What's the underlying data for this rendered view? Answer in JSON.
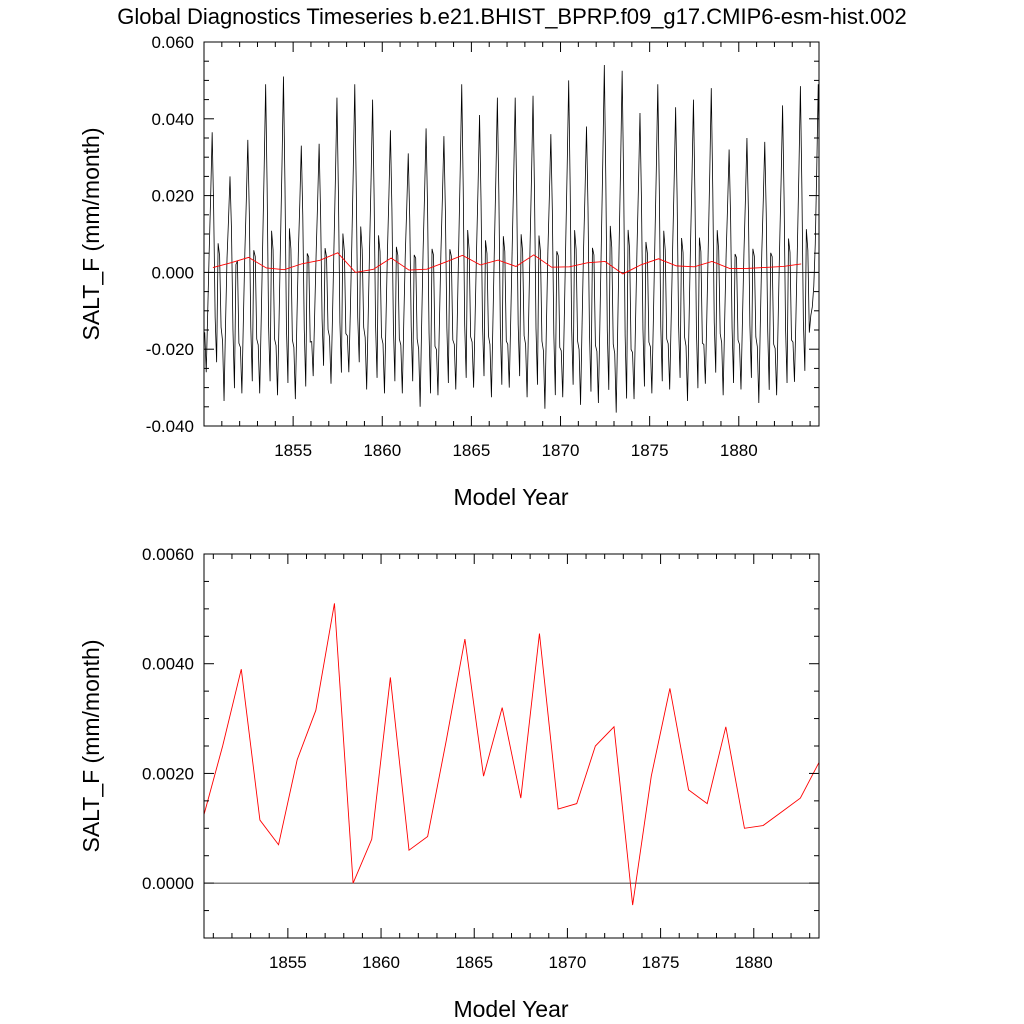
{
  "figure": {
    "title": "Global Diagnostics Timeseries b.e21.BHIST_BPRP.f09_g17.CMIP6-esm-hist.002"
  },
  "chart_data": [
    {
      "type": "line",
      "title": "Global Diagnostics Timeseries b.e21.BHIST_BPRP.f09_g17.CMIP6-esm-hist.002",
      "xlabel": "Model Year",
      "ylabel": "SALT_F (mm/month)",
      "xlim": [
        1850.0,
        1884.5
      ],
      "ylim": [
        -0.04,
        0.06
      ],
      "x_ticks": [
        "1855",
        "1860",
        "1865",
        "1870",
        "1875",
        "1880"
      ],
      "x_tick_values": [
        1855,
        1860,
        1865,
        1870,
        1875,
        1880
      ],
      "y_ticks": [
        "-0.040",
        "-0.020",
        "0.000",
        "0.020",
        "0.040",
        "0.060"
      ],
      "y_tick_values": [
        -0.04,
        -0.02,
        0.0,
        0.02,
        0.04,
        0.06
      ],
      "reference_line_y": 0.0,
      "series": [
        {
          "color": "#000000",
          "x_start": 1850.0417,
          "x_step": 0.08333,
          "annual_max": [
            0.0365,
            0.025,
            0.0345,
            0.049,
            0.051,
            0.033,
            0.0335,
            0.0455,
            0.049,
            0.045,
            0.037,
            0.031,
            0.0375,
            0.0355,
            0.049,
            0.041,
            0.0455,
            0.0455,
            0.046,
            0.036,
            0.05,
            0.038,
            0.054,
            0.0525,
            0.0415,
            0.049,
            0.043,
            0.045,
            0.048,
            0.032,
            0.035,
            0.034,
            0.0435,
            0.0485,
            0.049
          ],
          "annual_min": [
            -0.026,
            -0.0335,
            -0.0315,
            -0.0315,
            -0.032,
            -0.033,
            -0.027,
            -0.029,
            -0.026,
            -0.0305,
            -0.0315,
            -0.0315,
            -0.035,
            -0.032,
            -0.0305,
            -0.03,
            -0.0325,
            -0.03,
            -0.0325,
            -0.0355,
            -0.0325,
            -0.0345,
            -0.034,
            -0.0365,
            -0.033,
            -0.0315,
            -0.0305,
            -0.0335,
            -0.029,
            -0.032,
            -0.0305,
            -0.034,
            -0.032,
            -0.0285,
            -0.009
          ]
        },
        {
          "color": "#ff0000",
          "x": [
            1850.5,
            1851.5,
            1852.5,
            1853.5,
            1854.5,
            1855.5,
            1856.5,
            1857.5,
            1858.5,
            1859.5,
            1860.5,
            1861.5,
            1862.5,
            1863.5,
            1864.5,
            1865.5,
            1866.5,
            1867.5,
            1868.5,
            1869.5,
            1870.5,
            1871.5,
            1872.5,
            1873.5,
            1874.5,
            1875.5,
            1876.5,
            1877.5,
            1878.5,
            1879.5,
            1880.5,
            1881.5,
            1882.5,
            1883.5
          ],
          "values": [
            0.00125,
            0.0025,
            0.0039,
            0.00115,
            0.0007,
            0.00225,
            0.00315,
            0.0051,
            0.0,
            0.0008,
            0.00375,
            0.0006,
            0.00085,
            0.0026,
            0.00445,
            0.00195,
            0.0032,
            0.00155,
            0.00455,
            0.00135,
            0.00145,
            0.0025,
            0.00285,
            -0.0004,
            0.00195,
            0.00355,
            0.0017,
            0.00145,
            0.00285,
            0.001,
            0.00105,
            0.0013,
            0.00155,
            0.0022
          ]
        }
      ]
    },
    {
      "type": "line",
      "title": "",
      "xlabel": "Model Year",
      "ylabel": "SALT_F (mm/month)",
      "xlim": [
        1850.5,
        1883.5
      ],
      "ylim": [
        -0.001,
        0.006
      ],
      "x_ticks": [
        "1855",
        "1860",
        "1865",
        "1870",
        "1875",
        "1880"
      ],
      "x_tick_values": [
        1855,
        1860,
        1865,
        1870,
        1875,
        1880
      ],
      "y_ticks": [
        "0.0000",
        "0.0020",
        "0.0040",
        "0.0060"
      ],
      "y_tick_values": [
        0.0,
        0.002,
        0.004,
        0.006
      ],
      "reference_line_y": 0.0,
      "series": [
        {
          "color": "#ff0000",
          "x": [
            1850.5,
            1851.5,
            1852.5,
            1853.5,
            1854.5,
            1855.5,
            1856.5,
            1857.5,
            1858.5,
            1859.5,
            1860.5,
            1861.5,
            1862.5,
            1863.5,
            1864.5,
            1865.5,
            1866.5,
            1867.5,
            1868.5,
            1869.5,
            1870.5,
            1871.5,
            1872.5,
            1873.5,
            1874.5,
            1875.5,
            1876.5,
            1877.5,
            1878.5,
            1879.5,
            1880.5,
            1881.5,
            1882.5,
            1883.5
          ],
          "values": [
            0.00125,
            0.0025,
            0.0039,
            0.00115,
            0.0007,
            0.00225,
            0.00315,
            0.0051,
            0.0,
            0.0008,
            0.00375,
            0.0006,
            0.00085,
            0.0026,
            0.00445,
            0.00195,
            0.0032,
            0.00155,
            0.00455,
            0.00135,
            0.00145,
            0.0025,
            0.00285,
            -0.0004,
            0.00195,
            0.00355,
            0.0017,
            0.00145,
            0.00285,
            0.001,
            0.00105,
            0.0013,
            0.00155,
            0.0022
          ]
        }
      ]
    }
  ]
}
